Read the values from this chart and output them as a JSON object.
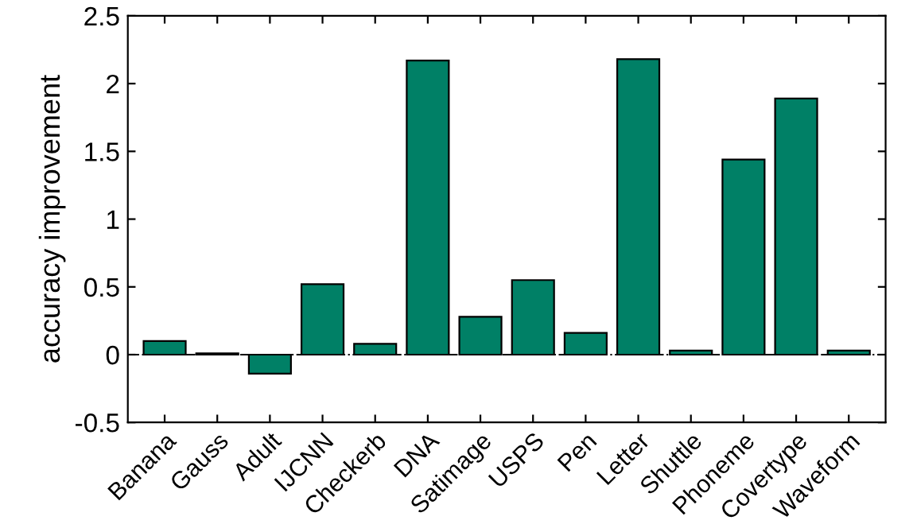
{
  "chart_data": {
    "type": "bar",
    "ylabel": "accuracy improvement",
    "categories": [
      "Banana",
      "Gauss",
      "Adult",
      "IJCNN",
      "Checkerb",
      "DNA",
      "Satimage",
      "USPS",
      "Pen",
      "Letter",
      "Shuttle",
      "Phoneme",
      "Covertype",
      "Waveform"
    ],
    "values": [
      0.1,
      0.01,
      -0.14,
      0.52,
      0.08,
      2.17,
      0.28,
      0.55,
      0.16,
      2.18,
      0.03,
      1.44,
      1.89,
      0.03
    ],
    "color": "#008066",
    "ylim": [
      -0.5,
      2.5
    ],
    "yticks": [
      -0.5,
      0,
      0.5,
      1,
      1.5,
      2,
      2.5
    ],
    "ref_lines": [
      {
        "axis": "y",
        "value": 0,
        "line_style": "dashdot",
        "color": "#000000"
      }
    ],
    "grid": false,
    "legend": false
  }
}
